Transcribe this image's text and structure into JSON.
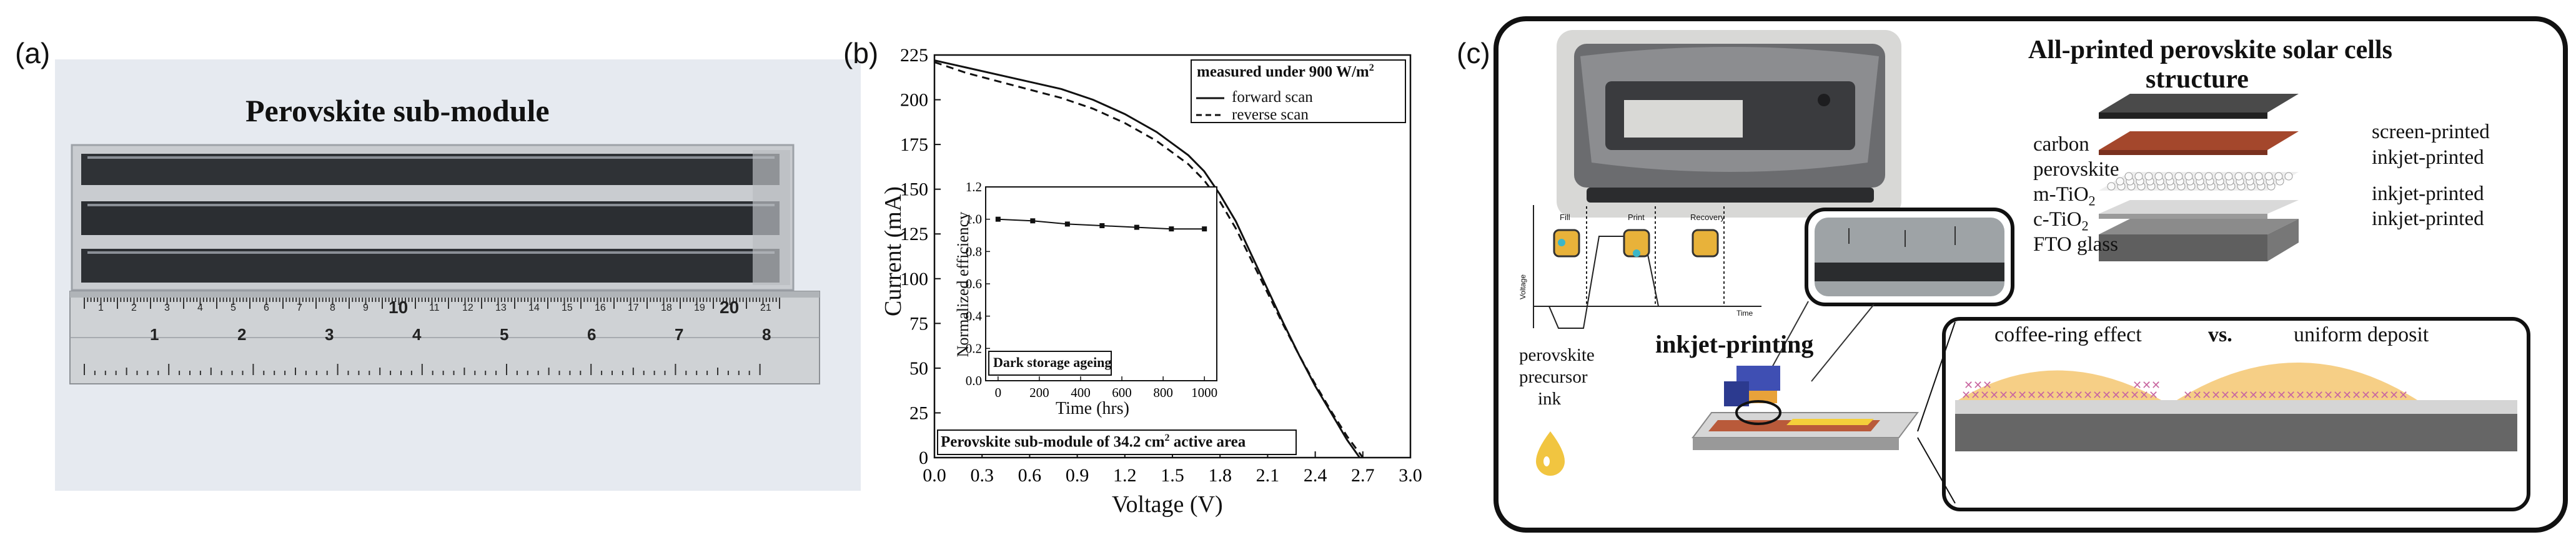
{
  "panels": {
    "a": {
      "label": "(a)",
      "title": "Perovskite sub-module",
      "ruler_cm_top": [
        "1",
        "2",
        "3",
        "4",
        "5",
        "6",
        "7",
        "8",
        "9",
        "10",
        "11",
        "12",
        "13",
        "14",
        "15",
        "16",
        "17",
        "18",
        "19",
        "20",
        "21"
      ],
      "ruler_in_bottom": [
        "1",
        "2",
        "3",
        "4",
        "5",
        "6",
        "7",
        "8"
      ]
    },
    "b": {
      "label": "(b)",
      "legend_title": "measured under 900 W/m",
      "legend_title_sup": "2",
      "legend_forward": "forward scan",
      "legend_reverse": "reverse scan",
      "inset_label": "Dark storage ageing",
      "caption_prefix": "Perovskite sub-module of 34.2 cm",
      "caption_sup": "2",
      "caption_suffix": " active area"
    },
    "c": {
      "label": "(c)",
      "title_line1": "All-printed perovskite solar cells",
      "title_line2": "structure",
      "layers_left": [
        "carbon",
        "perovskite",
        "m-TiO",
        "c-TiO",
        "FTO glass"
      ],
      "layers_right": [
        "screen-printed",
        "inkjet-printed",
        "inkjet-printed",
        "inkjet-printed"
      ],
      "sub2": "2",
      "waveform_steps": [
        "Fill",
        "Print",
        "Recovery"
      ],
      "waveform_y": "Voltage",
      "waveform_x": "Time",
      "ink_label": [
        "perovskite",
        "precursor",
        "ink"
      ],
      "inkjet_label": "inkjet-printing",
      "coffee_label": "coffee-ring effect",
      "vs_label": "vs.",
      "uniform_label": "uniform deposit"
    }
  },
  "chart_data": {
    "type": "line",
    "xlabel": "Voltage (V)",
    "ylabel": "Current (mA)",
    "xlim": [
      0.0,
      3.0
    ],
    "ylim": [
      0,
      225
    ],
    "xticks": [
      "0.0",
      "0.3",
      "0.6",
      "0.9",
      "1.2",
      "1.5",
      "1.8",
      "2.1",
      "2.4",
      "2.7",
      "3.0"
    ],
    "yticks": [
      "0",
      "25",
      "50",
      "75",
      "100",
      "125",
      "150",
      "175",
      "200",
      "225"
    ],
    "series": [
      {
        "name": "forward scan",
        "style": "solid",
        "x": [
          0.0,
          0.2,
          0.5,
          0.8,
          1.0,
          1.2,
          1.4,
          1.6,
          1.7,
          1.8,
          1.9,
          2.0,
          2.1,
          2.2,
          2.3,
          2.4,
          2.5,
          2.6,
          2.68
        ],
        "y": [
          222,
          218,
          212,
          206,
          200,
          192,
          182,
          169,
          160,
          147,
          132,
          113,
          94,
          75,
          57,
          40,
          25,
          10,
          0
        ]
      },
      {
        "name": "reverse scan",
        "style": "dashed",
        "x": [
          0.0,
          0.2,
          0.5,
          0.8,
          1.0,
          1.2,
          1.4,
          1.6,
          1.7,
          1.8,
          1.9,
          2.0,
          2.1,
          2.2,
          2.3,
          2.4,
          2.5,
          2.6,
          2.7
        ],
        "y": [
          221,
          215,
          208,
          201,
          195,
          187,
          177,
          164,
          155,
          143,
          128,
          110,
          92,
          74,
          57,
          41,
          26,
          12,
          0
        ]
      }
    ],
    "inset": {
      "type": "line",
      "xlabel": "Time (hrs)",
      "ylabel": "Normalized efficiency",
      "xlim": [
        -60,
        1060
      ],
      "ylim": [
        0,
        1.2
      ],
      "xticks": [
        "0",
        "200",
        "400",
        "600",
        "800",
        "1000"
      ],
      "yticks": [
        "0.0",
        "0.2",
        "0.4",
        "0.6",
        "0.8",
        "1.0",
        "1.2"
      ],
      "x": [
        0,
        168,
        336,
        504,
        672,
        840,
        1000
      ],
      "y": [
        1.0,
        0.99,
        0.97,
        0.96,
        0.95,
        0.94,
        0.94
      ]
    }
  }
}
